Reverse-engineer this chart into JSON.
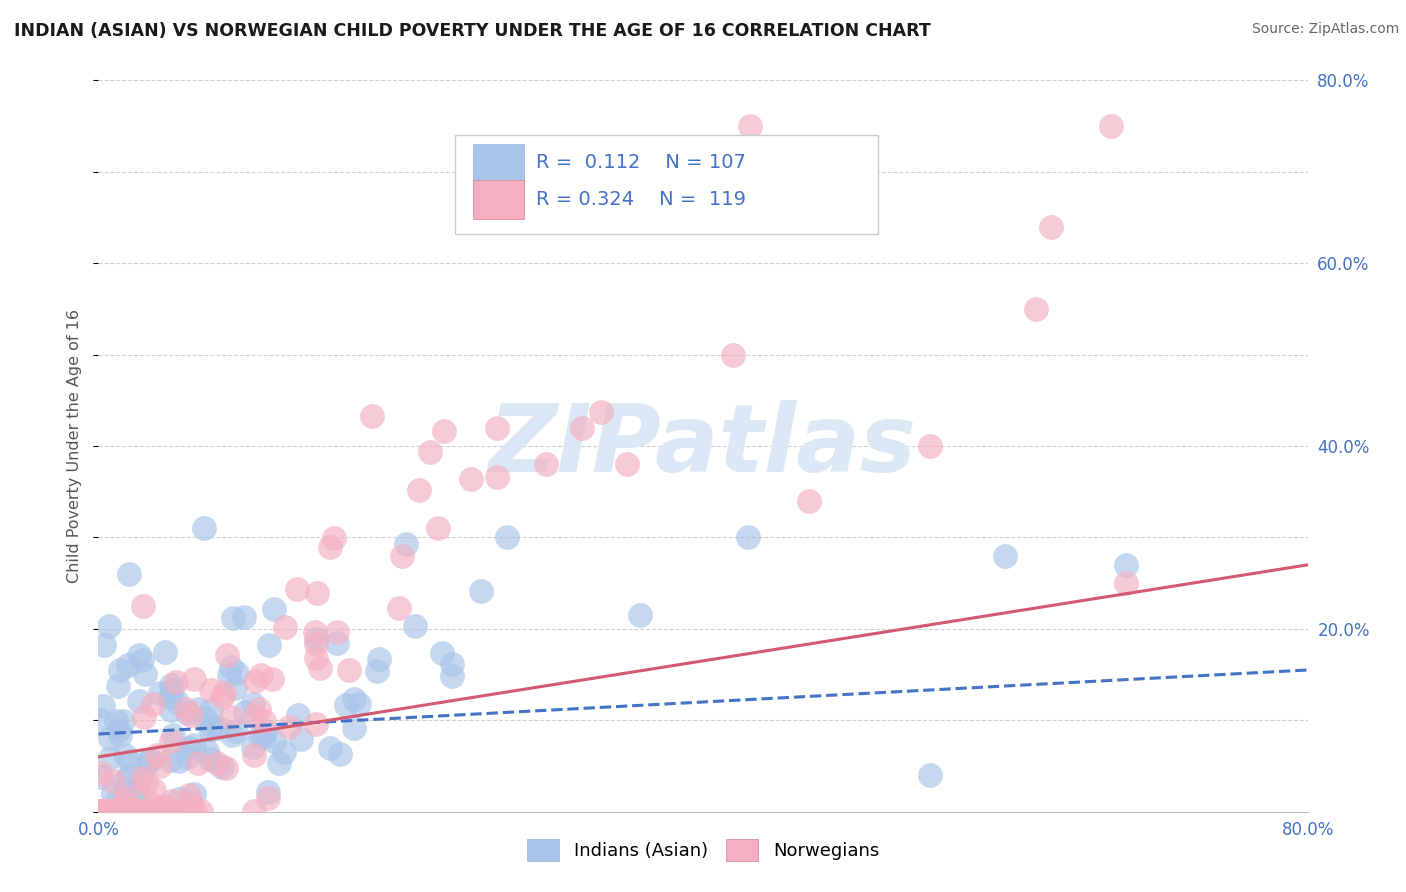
{
  "title": "INDIAN (ASIAN) VS NORWEGIAN CHILD POVERTY UNDER THE AGE OF 16 CORRELATION CHART",
  "source": "Source: ZipAtlas.com",
  "ylabel": "Child Poverty Under the Age of 16",
  "xlim": [
    0.0,
    0.8
  ],
  "ylim": [
    0.0,
    0.8
  ],
  "blue_R": 0.112,
  "blue_N": 107,
  "pink_R": 0.324,
  "pink_N": 119,
  "blue_color": "#a8c4e8",
  "pink_color": "#f4afc0",
  "blue_line_color": "#4472c4",
  "pink_line_color": "#d45870",
  "watermark": "ZIPatlas",
  "watermark_color": "#dce8f5",
  "title_color": "#1a1a1a",
  "source_color": "#666666",
  "legend_label_blue": "Indians (Asian)",
  "legend_label_pink": "Norwegians",
  "background_color": "#ffffff",
  "grid_color": "#cccccc",
  "tick_color": "#4472c4",
  "ylabel_color": "#555555",
  "blue_trend_start_y": 0.085,
  "blue_trend_end_y": 0.155,
  "pink_trend_start_y": 0.06,
  "pink_trend_end_y": 0.27
}
